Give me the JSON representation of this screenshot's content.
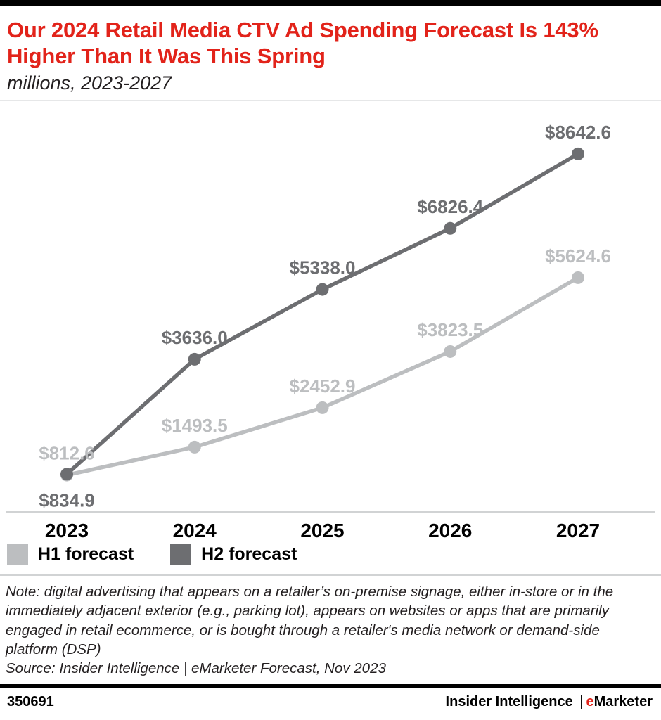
{
  "colors": {
    "accent_red": "#e2231a",
    "axis_gray": "#d1d3d4",
    "h1_gray": "#bcbec0",
    "h2_gray": "#6d6e71",
    "text_dark": "#231f20"
  },
  "header": {
    "title": "Our 2024 Retail Media CTV Ad Spending Forecast Is 143% Higher Than It Was This Spring",
    "subtitle": "millions, 2023-2027"
  },
  "chart_data": {
    "type": "line",
    "title": "Our 2024 Retail Media CTV Ad Spending Forecast Is 143% Higher Than It Was This Spring",
    "subtitle": "millions, 2023-2027",
    "categories": [
      "2023",
      "2024",
      "2025",
      "2026",
      "2027"
    ],
    "series": [
      {
        "name": "H1 forecast",
        "color": "#bcbec0",
        "values": [
          812.6,
          1493.5,
          2452.9,
          3823.5,
          5624.6
        ],
        "labels": [
          "$812.6",
          "$1493.5",
          "$2452.9",
          "$3823.5",
          "$5624.6"
        ],
        "label_positions": [
          "above",
          "above",
          "above",
          "above",
          "above"
        ]
      },
      {
        "name": "H2 forecast",
        "color": "#6d6e71",
        "values": [
          834.9,
          3636.0,
          5338.0,
          6826.4,
          8642.6
        ],
        "labels": [
          "$834.9",
          "$3636.0",
          "$5338.0",
          "$6826.4",
          "$8642.6"
        ],
        "label_positions": [
          "below",
          "above",
          "above",
          "above",
          "above"
        ]
      }
    ],
    "ylim": [
      0,
      9000
    ],
    "xlabel": "",
    "ylabel": "",
    "unit": "millions of dollars",
    "grid": false,
    "legend_position": "bottom-left"
  },
  "note": "Note: digital advertising that appears on a retailer’s on-premise signage, either in-store or in the immediately adjacent exterior (e.g., parking lot), appears on websites or apps that are primarily engaged in retail ecommerce, or is bought through a retailer's media network or demand-side platform (DSP)",
  "source": "Source: Insider Intelligence | eMarketer Forecast, Nov 2023",
  "footer": {
    "chart_id": "350691",
    "brand_name": "Insider Intelligence",
    "brand_sep": "|",
    "brand_e": "e",
    "brand_rest": "Marketer"
  }
}
